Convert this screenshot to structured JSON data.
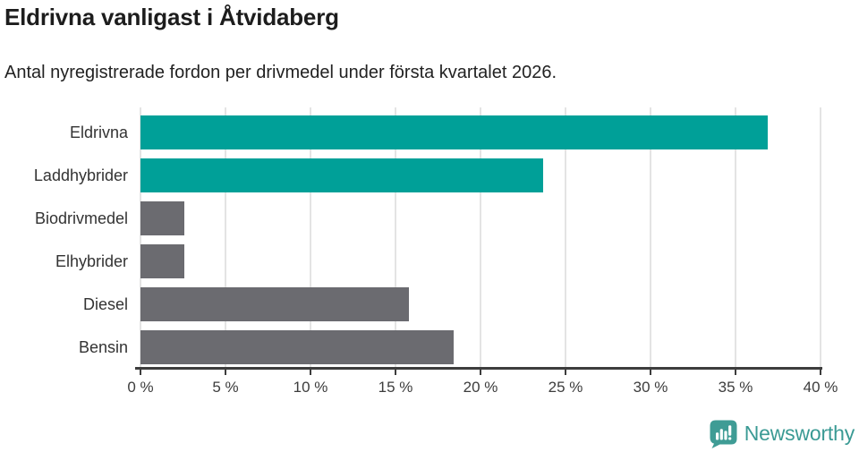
{
  "header": {
    "title": "Eldrivna vanligast i Åtvidaberg",
    "subtitle": "Antal nyregistrerade fordon per drivmedel under första kvartalet 2026."
  },
  "chart_data": {
    "type": "bar",
    "orientation": "horizontal",
    "title": "Eldrivna vanligast i Åtvidaberg",
    "subtitle": "Antal nyregistrerade fordon per drivmedel under första kvartalet 2026.",
    "categories": [
      "Eldrivna",
      "Laddhybrider",
      "Biodrivmedel",
      "Elhybrider",
      "Diesel",
      "Bensin"
    ],
    "values": [
      36.9,
      23.7,
      2.6,
      2.6,
      15.8,
      18.4
    ],
    "unit": "%",
    "bar_colors": [
      "#00a098",
      "#00a098",
      "#6b6b70",
      "#6b6b70",
      "#6b6b70",
      "#6b6b70"
    ],
    "xlabel": "",
    "ylabel": "",
    "xlim": [
      0,
      40
    ],
    "x_ticks": [
      0,
      5,
      10,
      15,
      20,
      25,
      30,
      35,
      40
    ],
    "x_tick_labels": [
      "0 %",
      "5 %",
      "10 %",
      "15 %",
      "20 %",
      "25 %",
      "30 %",
      "35 %",
      "40 %"
    ],
    "grid": true,
    "legend": false
  },
  "footer": {
    "brand": "Newsworthy"
  },
  "colors": {
    "accent_teal": "#00a098",
    "bar_gray": "#6b6b70",
    "gridline": "#e4e4e4",
    "axis": "#3d3d3d",
    "title_text": "#1d1d1d",
    "label_text": "#333333",
    "logo_teal": "#3f9c95",
    "brand_text": "#3a9a94",
    "background": "#ffffff"
  },
  "icons": {
    "brand_logo": "newsworthy-speech-bubble-bar-chart-icon"
  }
}
